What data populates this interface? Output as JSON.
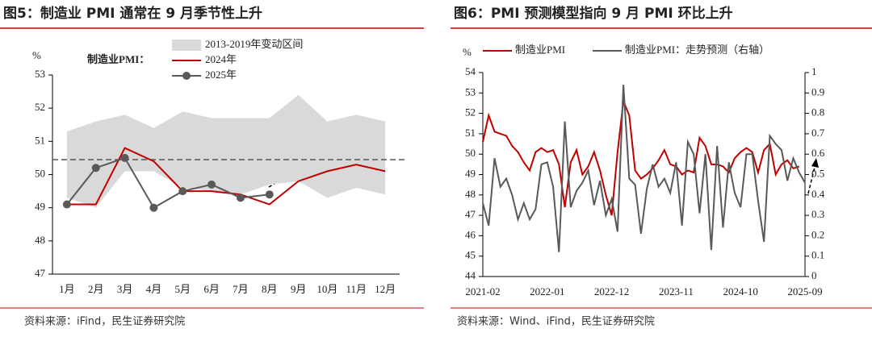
{
  "chart_data": [
    {
      "type": "line",
      "title": "图5：制造业 PMI 通常在 9 月季节性上升",
      "ylabel": "%",
      "legend_title": "制造业PMI：",
      "categories": [
        "1月",
        "2月",
        "3月",
        "4月",
        "5月",
        "6月",
        "7月",
        "8月",
        "9月",
        "10月",
        "11月",
        "12月"
      ],
      "band": {
        "name": "2013-2019年变动区间",
        "color": "#d9d9d9",
        "high": [
          51.3,
          51.6,
          51.8,
          51.4,
          51.9,
          51.7,
          51.7,
          51.7,
          52.4,
          51.6,
          51.8,
          51.6
        ],
        "low": [
          49.3,
          49.0,
          50.1,
          50.1,
          49.6,
          49.5,
          49.4,
          49.7,
          49.8,
          49.3,
          49.6,
          49.4
        ]
      },
      "series": [
        {
          "name": "2024年",
          "color": "#c00000",
          "marker": false,
          "values": [
            49.1,
            49.1,
            50.8,
            50.4,
            49.5,
            49.5,
            49.4,
            49.1,
            49.8,
            50.1,
            50.3,
            50.1
          ]
        },
        {
          "name": "2025年",
          "color": "#595959",
          "marker": true,
          "values": [
            49.1,
            50.2,
            50.5,
            49.0,
            49.5,
            49.7,
            49.3,
            49.4,
            null,
            null,
            null,
            null
          ]
        }
      ],
      "hline": 50.45,
      "ylim": [
        47,
        53
      ],
      "yticks": [
        47,
        48,
        49,
        50,
        51,
        52,
        53
      ],
      "source": "资料来源：iFind，民生证券研究院"
    },
    {
      "type": "line",
      "title": "图6：PMI 预测模型指向 9 月 PMI 环比上升",
      "ylabel": "%",
      "categories": [
        "2021-02",
        null,
        null,
        null,
        null,
        null,
        null,
        null,
        null,
        null,
        null,
        "2022-01",
        null,
        null,
        null,
        null,
        null,
        null,
        null,
        null,
        null,
        null,
        "2022-12",
        null,
        null,
        null,
        null,
        null,
        null,
        null,
        null,
        null,
        null,
        "2023-11",
        null,
        null,
        null,
        null,
        null,
        null,
        null,
        null,
        null,
        null,
        "2024-10",
        null,
        null,
        null,
        null,
        null,
        null,
        null,
        null,
        null,
        null,
        "2025-09"
      ],
      "series": [
        {
          "name": "制造业PMI",
          "color": "#c00000",
          "values": [
            50.6,
            51.9,
            51.1,
            51.0,
            50.9,
            50.4,
            50.1,
            49.6,
            49.2,
            50.1,
            50.3,
            50.1,
            50.2,
            49.5,
            47.4,
            49.6,
            50.2,
            49.0,
            49.4,
            50.1,
            49.2,
            48.0,
            47.0,
            50.1,
            52.6,
            51.9,
            49.2,
            48.8,
            49.0,
            49.3,
            49.7,
            50.2,
            49.5,
            49.4,
            49.0,
            49.2,
            49.1,
            50.8,
            50.4,
            49.5,
            49.5,
            49.4,
            49.1,
            49.8,
            50.1,
            50.3,
            50.1,
            49.1,
            50.2,
            50.5,
            49.0,
            49.5,
            49.7,
            49.3,
            49.4,
            null
          ]
        },
        {
          "name": "制造业PMI：走势预测（右轴）",
          "color": "#595959",
          "axis": "y2",
          "values": [
            0.36,
            0.25,
            0.58,
            0.44,
            0.48,
            0.4,
            0.28,
            0.36,
            0.28,
            0.33,
            0.55,
            0.56,
            0.44,
            0.12,
            0.76,
            0.34,
            0.42,
            0.46,
            0.52,
            0.35,
            0.47,
            0.3,
            0.38,
            0.22,
            0.94,
            0.48,
            0.45,
            0.21,
            0.43,
            0.55,
            0.44,
            0.48,
            0.41,
            0.56,
            0.25,
            0.66,
            0.6,
            0.31,
            0.6,
            0.13,
            0.64,
            0.24,
            0.56,
            0.41,
            0.34,
            0.6,
            0.6,
            0.37,
            0.17,
            0.69,
            0.65,
            0.62,
            0.47,
            0.58,
            0.51,
            0.46
          ]
        }
      ],
      "ylim": [
        44,
        54
      ],
      "yticks": [
        44,
        45,
        46,
        47,
        48,
        49,
        50,
        51,
        52,
        53,
        54
      ],
      "y2lim": [
        0,
        1
      ],
      "y2ticks": [
        0,
        0.1,
        0.2,
        0.3,
        0.4,
        0.5,
        0.6,
        0.7,
        0.8,
        0.9,
        1
      ],
      "source": "资料来源：Wind、iFind，民生证券研究院"
    }
  ]
}
